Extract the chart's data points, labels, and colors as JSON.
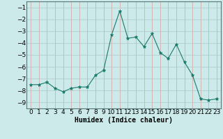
{
  "x": [
    0,
    1,
    2,
    3,
    4,
    5,
    6,
    7,
    8,
    9,
    10,
    11,
    12,
    13,
    14,
    15,
    16,
    17,
    18,
    19,
    20,
    21,
    22,
    23
  ],
  "y": [
    -7.5,
    -7.5,
    -7.3,
    -7.8,
    -8.1,
    -7.8,
    -7.7,
    -7.7,
    -6.7,
    -6.3,
    -3.3,
    -1.3,
    -3.6,
    -3.5,
    -4.3,
    -3.2,
    -4.8,
    -5.3,
    -4.1,
    -5.6,
    -6.7,
    -8.7,
    -8.8,
    -8.7
  ],
  "line_color": "#1a7a6a",
  "marker": "*",
  "bg_color": "#cceaea",
  "grid_color": "#b0c8c8",
  "grid_color_red": "#d4a0a0",
  "xlabel": "Humidex (Indice chaleur)",
  "ylim": [
    -9.5,
    -0.5
  ],
  "xlim": [
    -0.5,
    23.5
  ],
  "yticks": [
    -9,
    -8,
    -7,
    -6,
    -5,
    -4,
    -3,
    -2,
    -1
  ],
  "xticks": [
    0,
    1,
    2,
    3,
    4,
    5,
    6,
    7,
    8,
    9,
    10,
    11,
    12,
    13,
    14,
    15,
    16,
    17,
    18,
    19,
    20,
    21,
    22,
    23
  ],
  "xlabel_fontsize": 7,
  "tick_fontsize": 6.5
}
